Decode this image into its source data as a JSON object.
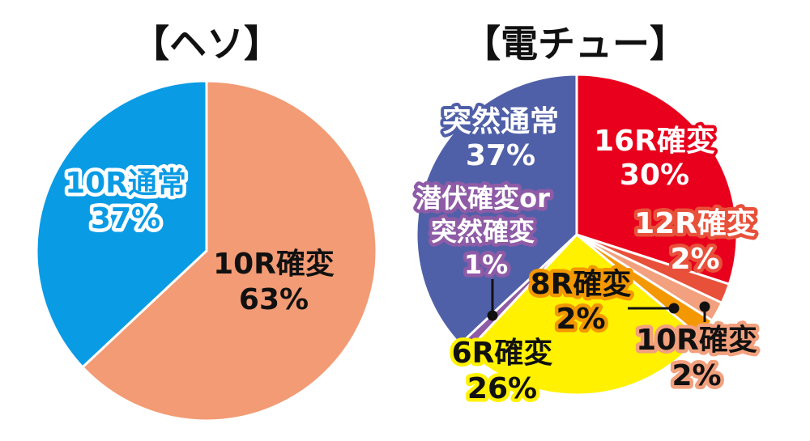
{
  "chart_data": [
    {
      "type": "pie",
      "title": "【ヘソ】",
      "slices": [
        {
          "name": "10R確変",
          "value": 63,
          "pct": "63%",
          "color": "#f29b74"
        },
        {
          "name": "10R通常",
          "value": 37,
          "pct": "37%",
          "color": "#0a9be5"
        }
      ]
    },
    {
      "type": "pie",
      "title": "【電チュー】",
      "slices": [
        {
          "name": "16R確変",
          "value": 30,
          "pct": "30%",
          "color": "#e8001c"
        },
        {
          "name": "12R確変",
          "value": 2,
          "pct": "2%",
          "color": "#e8503a"
        },
        {
          "name": "10R確変",
          "value": 2,
          "pct": "2%",
          "color": "#f2a07d"
        },
        {
          "name": "8R確変",
          "value": 2,
          "pct": "2%",
          "color": "#f39800"
        },
        {
          "name": "6R確変",
          "value": 26,
          "pct": "26%",
          "color": "#fff100"
        },
        {
          "name": "潜伏確変or突然確変",
          "value": 1,
          "pct": "1%",
          "color": "#8e5ba6"
        },
        {
          "name": "突然通常",
          "value": 37,
          "pct": "37%",
          "color": "#5060a8"
        }
      ]
    }
  ]
}
